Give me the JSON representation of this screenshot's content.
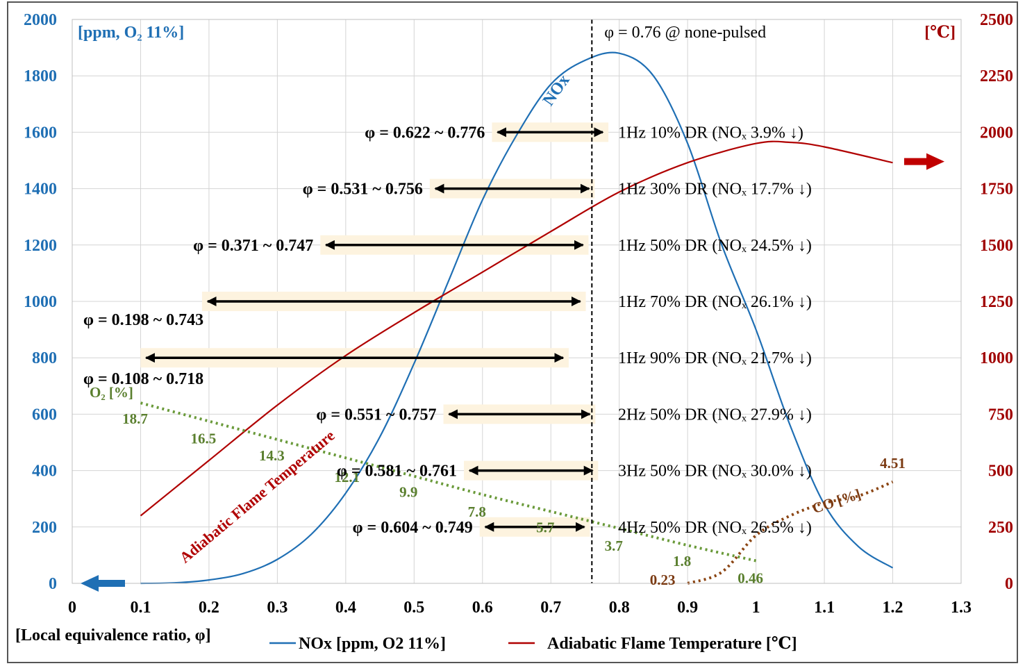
{
  "chart_data": {
    "type": "line",
    "title": "",
    "xlabel": "[Local equivalence ratio, φ]",
    "ylabel_left": "[ppm, O₂ 11%]",
    "ylabel_right": "[℃]",
    "xlim": [
      0,
      1.3
    ],
    "ylim_left": [
      0,
      2000
    ],
    "ylim_right": [
      0,
      2500
    ],
    "x_ticks": [
      "0",
      "0.1",
      "0.2",
      "0.3",
      "0.4",
      "0.5",
      "0.6",
      "0.7",
      "0.8",
      "0.9",
      "1",
      "1.1",
      "1.2",
      "1.3"
    ],
    "y_left_ticks": [
      "0",
      "200",
      "400",
      "600",
      "800",
      "1000",
      "1200",
      "1400",
      "1600",
      "1800",
      "2000"
    ],
    "y_right_ticks": [
      "0",
      "250",
      "500",
      "750",
      "1000",
      "1250",
      "1500",
      "1750",
      "2000",
      "2250",
      "2500"
    ],
    "grid": true,
    "legend_position": "bottom",
    "series": [
      {
        "name": "NOx [ppm, O2 11%]",
        "axis": "left",
        "color": "#1f6fb4",
        "curve_label": "NOx",
        "x": [
          0.1,
          0.15,
          0.2,
          0.25,
          0.3,
          0.35,
          0.4,
          0.45,
          0.5,
          0.55,
          0.6,
          0.65,
          0.7,
          0.75,
          0.8,
          0.85,
          0.9,
          0.95,
          1.0,
          1.05,
          1.1,
          1.15,
          1.2
        ],
        "values": [
          0,
          2,
          12,
          35,
          85,
          175,
          320,
          520,
          780,
          1070,
          1360,
          1590,
          1770,
          1855,
          1880,
          1800,
          1560,
          1200,
          900,
          560,
          280,
          130,
          55
        ]
      },
      {
        "name": "Adiabatic Flame Temperature [℃]",
        "axis": "right",
        "color": "#b00000",
        "curve_label": "Adiabatic Flame Temperature",
        "x": [
          0.1,
          0.2,
          0.3,
          0.4,
          0.5,
          0.6,
          0.7,
          0.8,
          0.9,
          1.0,
          1.05,
          1.1,
          1.2
        ],
        "values": [
          300,
          545,
          790,
          1010,
          1200,
          1380,
          1560,
          1735,
          1865,
          1950,
          1955,
          1935,
          1865
        ]
      },
      {
        "name": "O₂ [%]",
        "axis": "left",
        "color": "#6a9a3a",
        "x": [
          0.1,
          0.2,
          0.3,
          0.4,
          0.5,
          0.6,
          0.7,
          0.8,
          0.9,
          1.0
        ],
        "values": [
          640,
          575,
          510,
          445,
          380,
          315,
          255,
          195,
          135,
          80
        ],
        "point_labels": [
          {
            "x": 0.1,
            "text": "18.7"
          },
          {
            "x": 0.2,
            "text": "16.5"
          },
          {
            "x": 0.3,
            "text": "14.3"
          },
          {
            "x": 0.41,
            "text": "12.1"
          },
          {
            "x": 0.5,
            "text": "9.9"
          },
          {
            "x": 0.6,
            "text": "7.8"
          },
          {
            "x": 0.7,
            "text": "5.7"
          },
          {
            "x": 0.8,
            "text": "3.7"
          },
          {
            "x": 0.9,
            "text": "1.8"
          },
          {
            "x": 1.0,
            "text": "0.46"
          }
        ]
      },
      {
        "name": "CO [%]",
        "axis": "left",
        "color": "#8b4513",
        "x": [
          0.9,
          0.95,
          1.0,
          1.05,
          1.1,
          1.15,
          1.2
        ],
        "values": [
          0,
          40,
          170,
          240,
          285,
          310,
          360
        ],
        "point_labels": [
          {
            "x": 0.9,
            "text": "0.23"
          },
          {
            "x": 1.2,
            "text": "4.51"
          }
        ]
      }
    ],
    "reference_line": {
      "x": 0.76,
      "label": "φ = 0.76 @ none-pulsed"
    },
    "ranges": [
      {
        "from": 0.622,
        "to": 0.776,
        "y": 1600,
        "label": "φ = 0.622 ~ 0.776",
        "condition": "1Hz 10% DR (NOₓ 3.9% ↓)"
      },
      {
        "from": 0.531,
        "to": 0.756,
        "y": 1400,
        "label": "φ = 0.531 ~ 0.756",
        "condition": "1Hz 30% DR (NOₓ 17.7% ↓)"
      },
      {
        "from": 0.371,
        "to": 0.747,
        "y": 1200,
        "label": "φ = 0.371 ~ 0.747",
        "condition": "1Hz 50% DR (NOₓ 24.5% ↓)"
      },
      {
        "from": 0.198,
        "to": 0.743,
        "y": 1000,
        "label": "φ = 0.198 ~ 0.743",
        "condition": "1Hz 70% DR (NOₓ 26.1% ↓)"
      },
      {
        "from": 0.108,
        "to": 0.718,
        "y": 800,
        "label": "φ = 0.108 ~ 0.718",
        "condition": "1Hz 90% DR (NOₓ 21.7% ↓)"
      },
      {
        "from": 0.551,
        "to": 0.757,
        "y": 600,
        "label": "φ = 0.551 ~ 0.757",
        "condition": "2Hz 50% DR (NOₓ 27.9% ↓)"
      },
      {
        "from": 0.581,
        "to": 0.761,
        "y": 400,
        "label": "φ = 0.581 ~ 0.761",
        "condition": "3Hz 50% DR (NOₓ 30.0% ↓)"
      },
      {
        "from": 0.604,
        "to": 0.749,
        "y": 200,
        "label": "φ = 0.604 ~ 0.749",
        "condition": "4Hz 50% DR (NOₓ 26.5% ↓)"
      }
    ],
    "legend": [
      "NOx [ppm, O2 11%]",
      "Adiabatic Flame Temperature [℃]"
    ]
  }
}
